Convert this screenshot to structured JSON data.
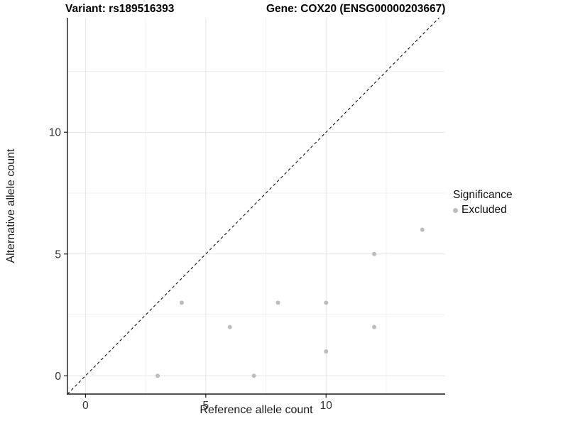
{
  "header": {
    "variant_title": "Variant: rs189516393",
    "gene_title": "Gene: COX20 (ENSG00000203667)"
  },
  "chart_data": {
    "type": "scatter",
    "title": "Variant: rs189516393 — Gene: COX20 (ENSG00000203667)",
    "xlabel": "Reference allele count",
    "ylabel": "Alternative allele count",
    "xlim": [
      -0.75,
      14.95
    ],
    "ylim": [
      -0.75,
      14.7
    ],
    "x_ticks": [
      0,
      5,
      10
    ],
    "y_ticks": [
      0,
      5,
      10
    ],
    "x_minor_ticks": [
      2.5,
      7.5,
      12.5
    ],
    "y_minor_ticks": [
      2.5,
      7.5,
      12.5
    ],
    "grid": true,
    "identity_line": {
      "style": "dashed",
      "from": -0.75,
      "to": 14.7
    },
    "series": [
      {
        "name": "Excluded",
        "color": "#bdbdbd",
        "points": [
          [
            3,
            0
          ],
          [
            4,
            3
          ],
          [
            6,
            2
          ],
          [
            7,
            0
          ],
          [
            8,
            3
          ],
          [
            10,
            1
          ],
          [
            10,
            3
          ],
          [
            12,
            2
          ],
          [
            12,
            5
          ],
          [
            14,
            6
          ]
        ]
      }
    ],
    "legend": {
      "title": "Significance",
      "position": "right",
      "items": [
        {
          "label": "Excluded",
          "color": "#bdbdbd"
        }
      ]
    },
    "colors": {
      "point": "#bdbdbd",
      "grid_major": "#e6e6e6",
      "grid_minor": "#f2f2f2",
      "axis_line": "#1a1a1a",
      "tick_label": "#333333",
      "identity_line": "#111111",
      "background": "#ffffff"
    }
  }
}
